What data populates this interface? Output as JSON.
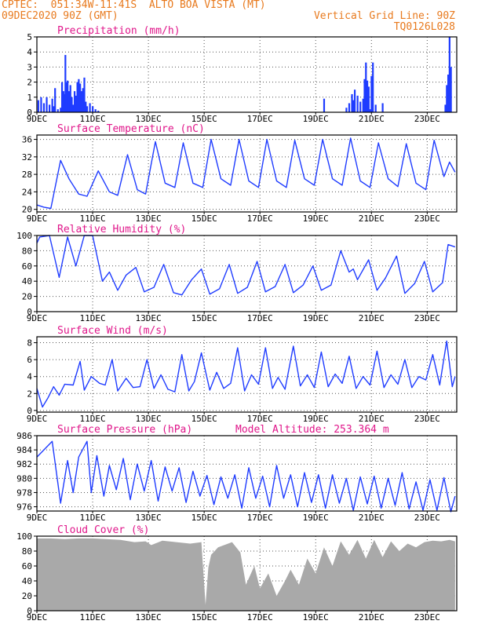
{
  "header": {
    "line1": "CPTEC:  051:34W-11:41S  ALTO BOA VISTA (MT)",
    "line2": "09DEC2020 90Z (GMT)",
    "grid_note": "Vertical Grid Line: 90Z",
    "code": "TQ0126L028"
  },
  "colors": {
    "header": "#e87a1e",
    "title": "#e0168a",
    "series": "#1f3cff",
    "cloud": "#a9a9a9"
  },
  "x_ticks": [
    "9DEC",
    "11DEC",
    "13DEC",
    "15DEC",
    "17DEC",
    "19DEC",
    "21DEC",
    "23DEC"
  ],
  "x_tick_days": [
    0,
    2,
    4,
    6,
    8,
    10,
    12,
    14
  ],
  "x_range_days": [
    0,
    15.06
  ],
  "chart_data": [
    {
      "id": "precip",
      "type": "bar",
      "title": "Precipitation (mm/h)",
      "ylim": [
        0,
        5
      ],
      "yticks": [
        "0",
        "1",
        "2",
        "3",
        "4",
        "5"
      ],
      "x_unit": "days since 09DEC2020 00Z",
      "x": [
        0.05,
        0.15,
        0.25,
        0.35,
        0.45,
        0.55,
        0.6,
        0.65,
        0.75,
        0.85,
        0.9,
        0.95,
        1.0,
        1.02,
        1.05,
        1.1,
        1.15,
        1.2,
        1.25,
        1.3,
        1.35,
        1.4,
        1.45,
        1.5,
        1.55,
        1.6,
        1.65,
        1.7,
        1.75,
        1.8,
        1.9,
        2.0,
        2.1,
        2.2,
        10.3,
        11.1,
        11.2,
        11.3,
        11.35,
        11.4,
        11.5,
        11.6,
        11.7,
        11.75,
        11.8,
        11.85,
        11.9,
        11.95,
        12.0,
        12.05,
        12.15,
        12.4,
        14.65,
        14.7,
        14.75,
        14.8,
        14.85
      ],
      "values": [
        0.8,
        1.0,
        0.6,
        1.0,
        0.5,
        0.9,
        0.4,
        1.6,
        0.2,
        0.3,
        2.0,
        1.4,
        1.2,
        3.8,
        2.0,
        2.1,
        1.4,
        1.8,
        1.0,
        0.5,
        1.4,
        1.1,
        2.0,
        2.2,
        1.9,
        1.4,
        1.6,
        2.3,
        0.7,
        0.4,
        0.6,
        0.4,
        0.2,
        0.1,
        0.9,
        0.3,
        0.6,
        1.2,
        0.8,
        1.5,
        1.1,
        0.7,
        0.9,
        2.2,
        3.3,
        2.1,
        1.7,
        0.2,
        2.4,
        3.3,
        0.5,
        0.6,
        0.5,
        1.8,
        2.5,
        5.0,
        3.0
      ]
    },
    {
      "id": "temp",
      "type": "line",
      "title": "Surface Temperature (nC)",
      "ylim": [
        19.4,
        37
      ],
      "yticks": [
        "20",
        "24",
        "28",
        "32",
        "36"
      ],
      "x_unit": "days since 09DEC2020 00Z",
      "x": [
        0,
        0.25,
        0.5,
        0.85,
        1.15,
        1.5,
        1.8,
        2.2,
        2.6,
        2.9,
        3.25,
        3.6,
        3.9,
        4.25,
        4.6,
        4.95,
        5.25,
        5.6,
        5.95,
        6.25,
        6.6,
        6.95,
        7.25,
        7.6,
        7.95,
        8.25,
        8.6,
        8.95,
        9.25,
        9.6,
        9.95,
        10.25,
        10.6,
        10.95,
        11.25,
        11.6,
        11.95,
        12.25,
        12.6,
        12.95,
        13.25,
        13.6,
        13.95,
        14.25,
        14.6,
        14.8,
        15.0
      ],
      "values": [
        21,
        20.5,
        20.2,
        31.2,
        27,
        23.5,
        23,
        28.8,
        24,
        23.2,
        32.5,
        24.5,
        23.5,
        35.5,
        26,
        25,
        35.2,
        26,
        25,
        36,
        27,
        25.5,
        36,
        26.5,
        25,
        36,
        26.5,
        25,
        35.8,
        27,
        25.5,
        36,
        27,
        25.5,
        36.3,
        26.5,
        25,
        35.2,
        27,
        25.2,
        35,
        26,
        24.5,
        35.8,
        27.5,
        30.8,
        28.5
      ]
    },
    {
      "id": "rh",
      "type": "line",
      "title": "Relative Humidity (%)",
      "ylim": [
        0,
        100
      ],
      "yticks": [
        "0",
        "20",
        "40",
        "60",
        "80",
        "100"
      ],
      "x_unit": "days since 09DEC2020 00Z",
      "x": [
        0,
        0.1,
        0.45,
        0.8,
        1.1,
        1.4,
        1.7,
        2.0,
        2.35,
        2.6,
        2.9,
        3.2,
        3.55,
        3.85,
        4.2,
        4.55,
        4.9,
        5.2,
        5.55,
        5.9,
        6.2,
        6.55,
        6.9,
        7.2,
        7.55,
        7.9,
        8.2,
        8.55,
        8.9,
        9.2,
        9.55,
        9.9,
        10.2,
        10.55,
        10.9,
        11.2,
        11.35,
        11.5,
        11.9,
        12.2,
        12.5,
        12.9,
        13.2,
        13.55,
        13.9,
        14.2,
        14.55,
        14.75,
        15.0
      ],
      "values": [
        90,
        98,
        100,
        45,
        98,
        60,
        100,
        100,
        40,
        52,
        28,
        48,
        58,
        26,
        32,
        62,
        25,
        22,
        42,
        56,
        23,
        30,
        62,
        24,
        32,
        66,
        26,
        33,
        62,
        25,
        35,
        60,
        28,
        35,
        80,
        52,
        56,
        42,
        68,
        28,
        44,
        73,
        24,
        37,
        66,
        26,
        38,
        88,
        85
      ]
    },
    {
      "id": "wind",
      "type": "line",
      "title": "Surface Wind (m/s)",
      "ylim": [
        -0.2,
        8.7
      ],
      "yticks": [
        "0",
        "2",
        "4",
        "6",
        "8"
      ],
      "x_unit": "days since 09DEC2020 00Z",
      "x": [
        0,
        0.2,
        0.4,
        0.6,
        0.8,
        1.0,
        1.3,
        1.55,
        1.7,
        1.95,
        2.25,
        2.45,
        2.7,
        2.9,
        3.2,
        3.45,
        3.7,
        3.95,
        4.2,
        4.45,
        4.7,
        4.95,
        5.2,
        5.45,
        5.65,
        5.9,
        6.2,
        6.45,
        6.7,
        6.95,
        7.2,
        7.45,
        7.7,
        7.95,
        8.2,
        8.45,
        8.65,
        8.9,
        9.2,
        9.45,
        9.7,
        9.95,
        10.2,
        10.45,
        10.7,
        10.95,
        11.2,
        11.45,
        11.7,
        11.95,
        12.2,
        12.45,
        12.7,
        12.95,
        13.2,
        13.45,
        13.7,
        13.95,
        14.2,
        14.45,
        14.7,
        14.9,
        15.0
      ],
      "values": [
        2.6,
        0.4,
        1.5,
        2.8,
        1.8,
        3.1,
        3.0,
        5.8,
        2.4,
        4.0,
        3.2,
        3.0,
        6.0,
        2.3,
        3.8,
        2.7,
        2.8,
        6.0,
        2.6,
        4.2,
        2.5,
        2.2,
        6.6,
        2.3,
        3.4,
        6.8,
        2.4,
        4.5,
        2.6,
        3.2,
        7.4,
        2.3,
        4.2,
        3.1,
        7.4,
        2.6,
        3.9,
        2.5,
        7.6,
        2.9,
        4.2,
        2.7,
        6.9,
        2.8,
        4.3,
        3.2,
        6.4,
        2.6,
        4.0,
        3.0,
        7.0,
        2.7,
        4.2,
        3.1,
        6.0,
        2.7,
        4.0,
        3.6,
        6.6,
        3.0,
        8.2,
        2.8,
        4.0
      ]
    },
    {
      "id": "pressure",
      "type": "line",
      "title": "Surface Pressure (hPa)",
      "annotation": "Model Altitude: 253.364 m",
      "ylim": [
        975.4,
        986
      ],
      "yticks": [
        "976",
        "978",
        "980",
        "982",
        "984",
        "986"
      ],
      "x_unit": "days since 09DEC2020 00Z",
      "x": [
        0,
        0.55,
        0.85,
        1.1,
        1.3,
        1.5,
        1.8,
        1.95,
        2.15,
        2.4,
        2.6,
        2.85,
        3.1,
        3.35,
        3.6,
        3.85,
        4.1,
        4.35,
        4.6,
        4.85,
        5.1,
        5.35,
        5.6,
        5.85,
        6.1,
        6.35,
        6.6,
        6.85,
        7.1,
        7.35,
        7.6,
        7.85,
        8.1,
        8.35,
        8.6,
        8.85,
        9.1,
        9.35,
        9.6,
        9.85,
        10.1,
        10.35,
        10.6,
        10.85,
        11.1,
        11.35,
        11.6,
        11.85,
        12.1,
        12.35,
        12.6,
        12.85,
        13.1,
        13.35,
        13.6,
        13.85,
        14.1,
        14.35,
        14.6,
        14.85,
        15.0
      ],
      "values": [
        983,
        985.2,
        976.5,
        982.5,
        978,
        983,
        985.2,
        978,
        983.2,
        977.5,
        981.8,
        978.4,
        982.8,
        977,
        982,
        978.2,
        982.5,
        976.8,
        981.6,
        978.2,
        981.5,
        976.6,
        981,
        977.5,
        980.4,
        976.3,
        980.2,
        977.2,
        980.5,
        975.8,
        981.5,
        977.2,
        980.3,
        976,
        981.8,
        977.2,
        980.5,
        976,
        980.8,
        976.6,
        980.5,
        975.8,
        980.5,
        976.5,
        980,
        975.5,
        980.2,
        976.4,
        980.3,
        975.8,
        980,
        976.2,
        980.8,
        975.7,
        979.5,
        975.5,
        979.8,
        975.5,
        980.1,
        975.3,
        977.5
      ]
    },
    {
      "id": "cloud",
      "type": "area",
      "title": "Cloud Cover (%)",
      "ylim": [
        0,
        100
      ],
      "yticks": [
        "0",
        "20",
        "40",
        "60",
        "80",
        "100"
      ],
      "x_unit": "days since 09DEC2020 00Z",
      "x": [
        0,
        0.5,
        1.0,
        1.5,
        2.0,
        2.5,
        3.0,
        3.5,
        3.9,
        4.1,
        4.5,
        5.0,
        5.5,
        5.9,
        6.05,
        6.15,
        6.25,
        6.5,
        7.0,
        7.3,
        7.5,
        7.8,
        8.0,
        8.3,
        8.6,
        8.9,
        9.1,
        9.4,
        9.7,
        10.0,
        10.3,
        10.6,
        10.9,
        11.2,
        11.5,
        11.8,
        12.1,
        12.4,
        12.7,
        13.0,
        13.3,
        13.6,
        13.9,
        14.2,
        14.5,
        14.8,
        15.0
      ],
      "values": [
        97,
        97,
        96,
        97,
        97,
        96,
        95,
        92,
        93,
        88,
        94,
        92,
        90,
        92,
        8,
        58,
        75,
        85,
        92,
        78,
        35,
        60,
        30,
        50,
        20,
        40,
        55,
        35,
        70,
        50,
        85,
        60,
        93,
        75,
        95,
        70,
        95,
        72,
        93,
        80,
        90,
        85,
        92,
        94,
        93,
        95,
        93
      ]
    }
  ]
}
